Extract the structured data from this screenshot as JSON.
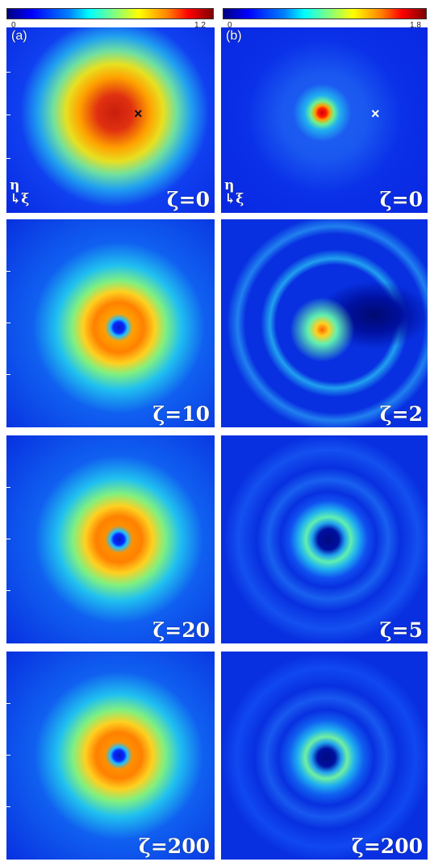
{
  "colorbar_a": {
    "min": "0",
    "max": "1.2"
  },
  "colorbar_b": {
    "min": "0",
    "max": "1.8"
  },
  "column_a": {
    "label": "(a)",
    "axis_eta": "η",
    "axis_xi": "↳ξ",
    "panels": [
      "ζ=0",
      "ζ=10",
      "ζ=20",
      "ζ=200"
    ]
  },
  "column_b": {
    "label": "(b)",
    "axis_eta": "η",
    "axis_xi": "↳ξ",
    "panels": [
      "ζ=0",
      "ζ=2",
      "ζ=5",
      "ζ=200"
    ]
  },
  "markers": {
    "cross": "×"
  },
  "colors": {
    "low": "#0000ff",
    "mid": "#00ffff",
    "high": "#ff0000"
  }
}
